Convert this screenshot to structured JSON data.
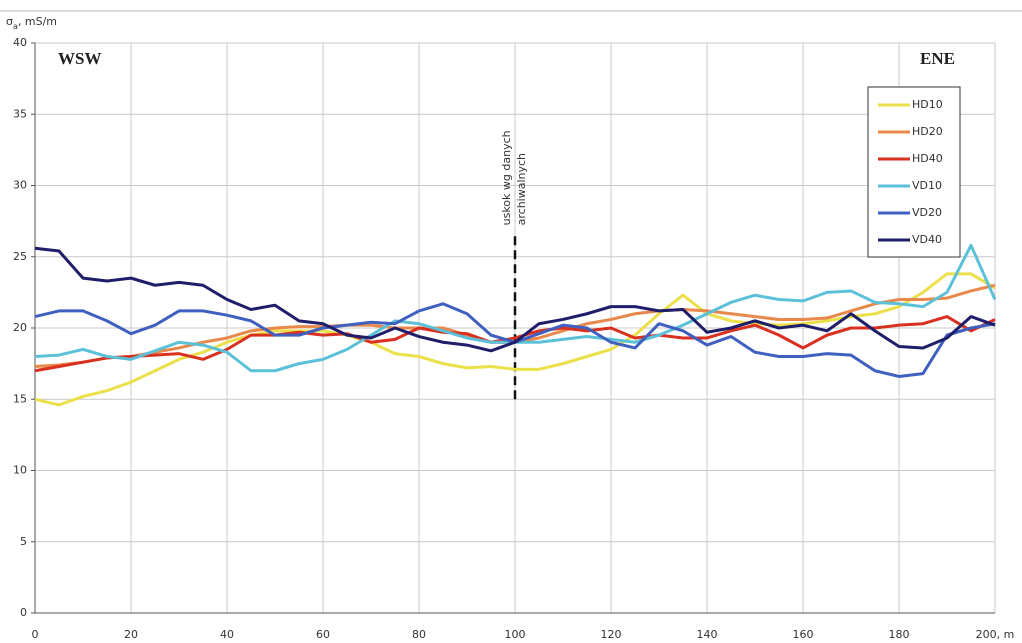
{
  "chart_data": {
    "type": "line",
    "y_label": [
      "σ",
      "a",
      ", mS/m"
    ],
    "annotations": [
      "WSW",
      "ENE"
    ],
    "fault_label": [
      "uskok wg danych",
      "archiwalnych"
    ],
    "fault_line": {
      "x": 100,
      "y": [
        15,
        26.5
      ]
    },
    "x": [
      0,
      5,
      10,
      15,
      20,
      25,
      30,
      35,
      40,
      45,
      50,
      55,
      60,
      65,
      70,
      75,
      80,
      85,
      90,
      95,
      100,
      105,
      110,
      115,
      120,
      125,
      130,
      135,
      140,
      145,
      150,
      155,
      160,
      165,
      170,
      175,
      180,
      185,
      190,
      195,
      200
    ],
    "series": [
      {
        "name": "HD10",
        "color": "#ece04a",
        "values": [
          15,
          14.6,
          15.2,
          15.6,
          16.2,
          17,
          17.8,
          18.3,
          19,
          19.5,
          19.8,
          19.8,
          19.8,
          19.5,
          19,
          18.2,
          18,
          17.5,
          17.2,
          17.3,
          17.1,
          17.1,
          17.5,
          18,
          18.5,
          19.5,
          21,
          22.3,
          21,
          20.5,
          20.3,
          20.2,
          20.3,
          20.5,
          20.8,
          21,
          21.5,
          22.5,
          23.8,
          23.8,
          22.8
        ]
      },
      {
        "name": "HD20",
        "color": "#e8884a",
        "values": [
          17.3,
          17.4,
          17.6,
          17.9,
          18,
          18.3,
          18.6,
          19,
          19.3,
          19.8,
          20,
          20.1,
          20.1,
          20.2,
          20.2,
          20,
          20,
          20,
          19.5,
          19,
          19,
          19.3,
          19.8,
          20.3,
          20.6,
          21,
          21.2,
          21.3,
          21.2,
          21,
          20.8,
          20.6,
          20.6,
          20.7,
          21.2,
          21.7,
          22,
          22,
          22.1,
          22.6,
          23
        ]
      },
      {
        "name": "HD40",
        "color": "#d93020",
        "values": [
          17,
          17.3,
          17.6,
          17.9,
          18,
          18.1,
          18.2,
          17.8,
          18.5,
          19.5,
          19.5,
          19.7,
          19.5,
          19.6,
          19,
          19.2,
          20,
          19.7,
          19.6,
          19,
          19.3,
          19.8,
          20,
          19.8,
          20,
          19.3,
          19.5,
          19.3,
          19.3,
          19.8,
          20.2,
          19.5,
          18.6,
          19.5,
          20,
          20,
          20.2,
          20.3,
          20.8,
          19.8,
          20.6
        ]
      },
      {
        "name": "VD10",
        "color": "#5bc0d8",
        "values": [
          18,
          18.1,
          18.5,
          18,
          17.8,
          18.4,
          19,
          18.8,
          18.3,
          17,
          17,
          17.5,
          17.8,
          18.5,
          19.5,
          20.5,
          20.3,
          19.8,
          19.3,
          19,
          19,
          19,
          19.2,
          19.4,
          19.2,
          19,
          19.5,
          20.2,
          21,
          21.8,
          22.3,
          22,
          21.9,
          22.5,
          22.6,
          21.8,
          21.7,
          21.5,
          22.5,
          25.8,
          22
        ]
      },
      {
        "name": "VD20",
        "color": "#4060c0",
        "values": [
          20.8,
          21.2,
          21.2,
          20.5,
          19.6,
          20.2,
          21.2,
          21.2,
          20.9,
          20.5,
          19.5,
          19.5,
          20,
          20.2,
          20.4,
          20.3,
          21.2,
          21.7,
          21,
          19.5,
          19,
          19.6,
          20.2,
          20,
          19,
          18.6,
          20.3,
          19.8,
          18.8,
          19.4,
          18.3,
          18,
          18,
          18.2,
          18.1,
          17,
          16.6,
          16.8,
          19.5,
          20,
          20.3
        ]
      },
      {
        "name": "VD40",
        "color": "#1e1e6a",
        "values": [
          25.6,
          25.4,
          23.5,
          23.3,
          23.5,
          23,
          23.2,
          23,
          22,
          21.3,
          21.6,
          20.5,
          20.3,
          19.5,
          19.3,
          20,
          19.4,
          19,
          18.8,
          18.4,
          19,
          20.3,
          20.6,
          21,
          21.5,
          21.5,
          21.2,
          21.3,
          19.7,
          20,
          20.5,
          20,
          20.2,
          19.8,
          21,
          19.8,
          18.7,
          18.6,
          19.3,
          20.8,
          20.2
        ]
      }
    ],
    "xlim": [
      0,
      200
    ],
    "ylim": [
      0,
      40
    ],
    "xticks": [
      0,
      20,
      40,
      60,
      80,
      100,
      120,
      140,
      160,
      180,
      {
        "value": 200,
        "label": "200, m"
      }
    ],
    "yticks": [
      0,
      5,
      10,
      15,
      20,
      25,
      30,
      35,
      40
    ],
    "grid": true,
    "legend": "upper right"
  }
}
